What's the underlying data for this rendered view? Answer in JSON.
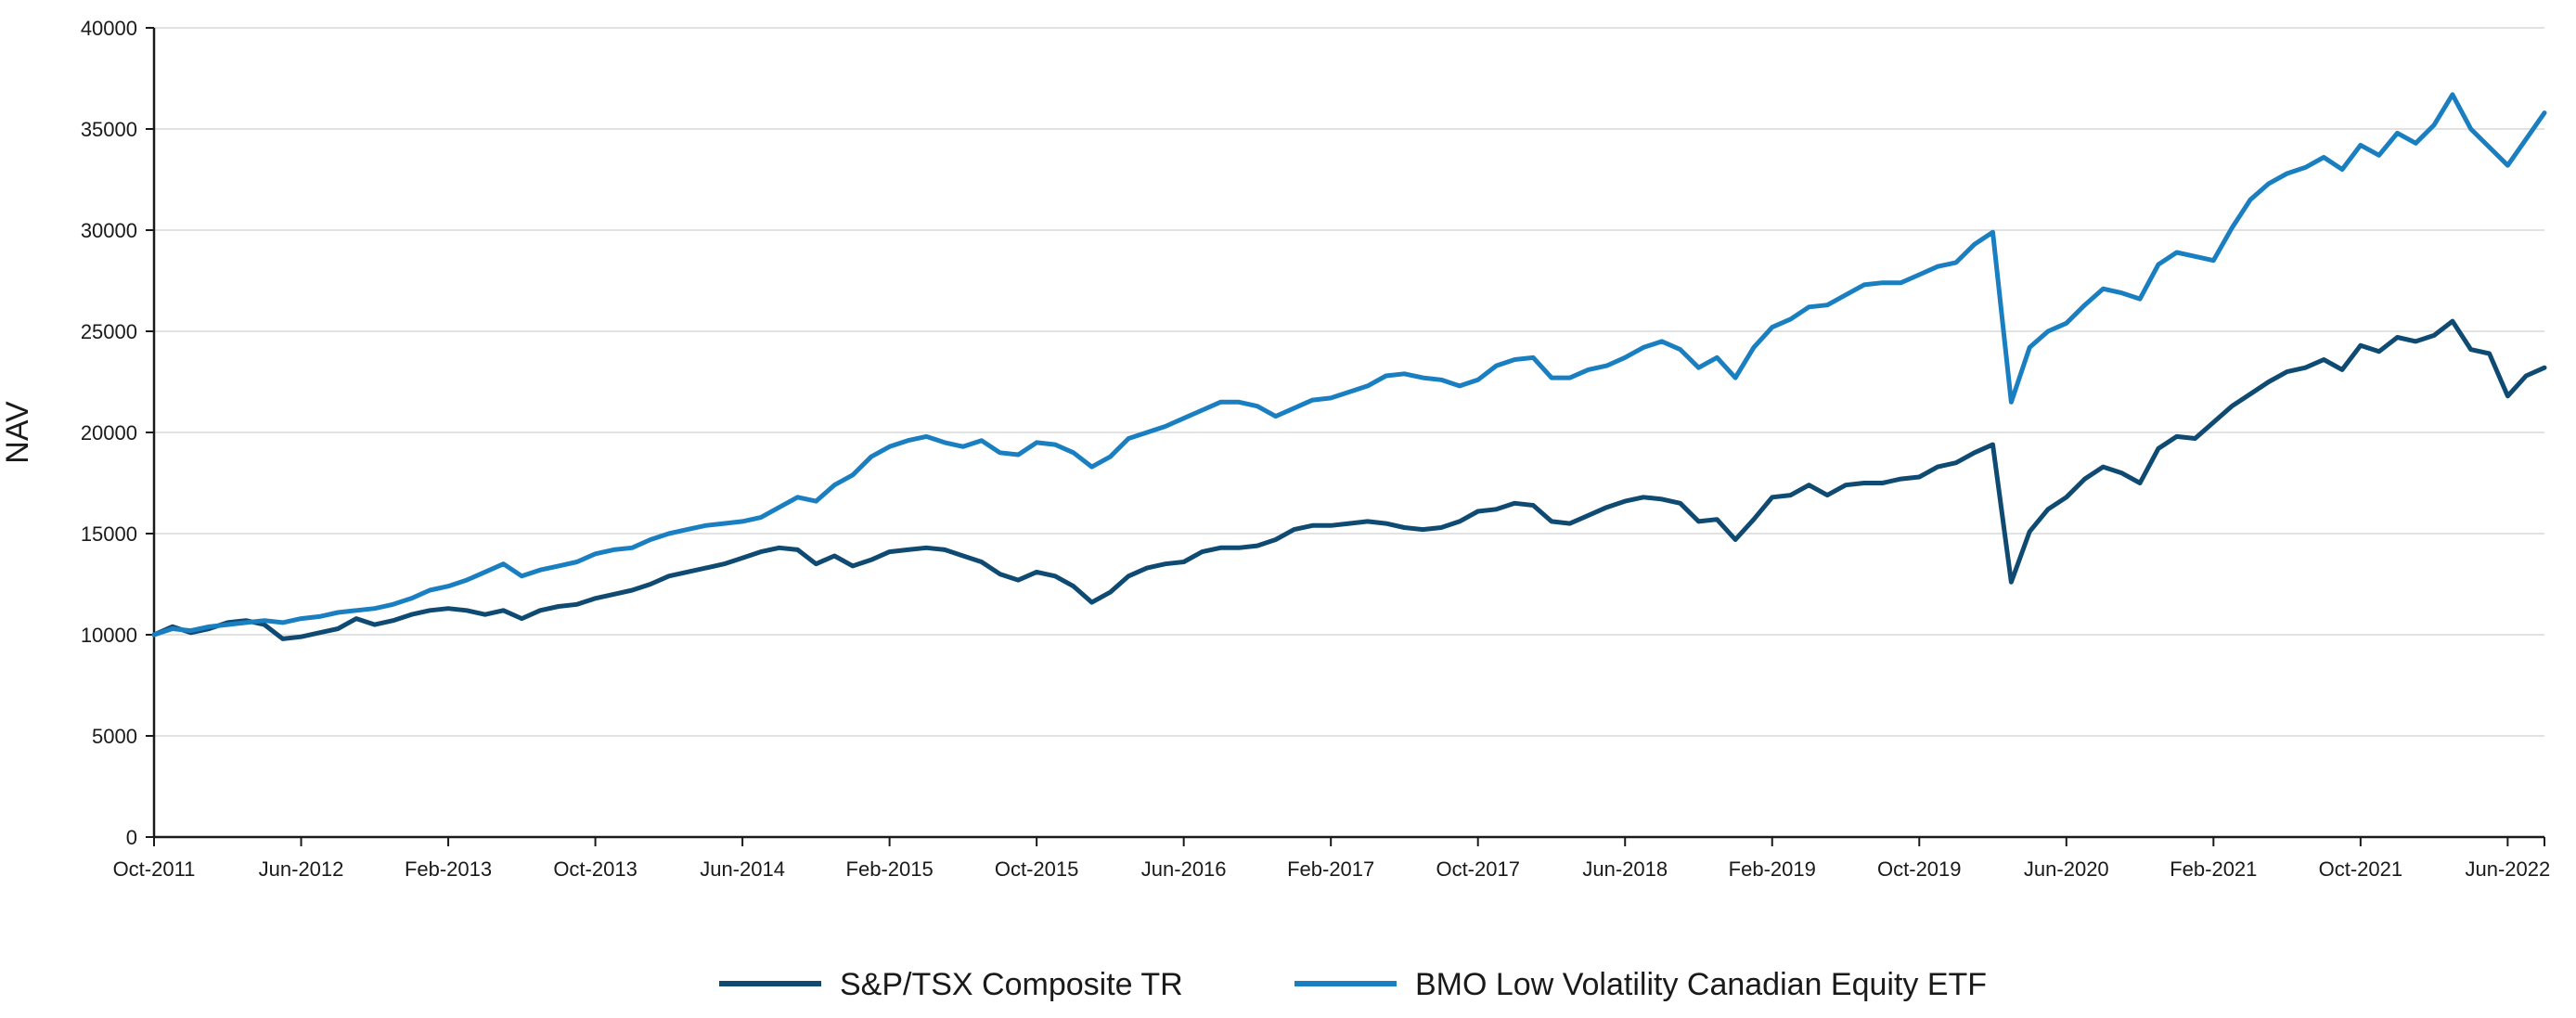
{
  "chart_data": {
    "type": "line",
    "title": "",
    "xlabel": "",
    "ylabel": "NAV",
    "ylim": [
      0,
      40000
    ],
    "yticks": [
      0,
      5000,
      10000,
      15000,
      20000,
      25000,
      30000,
      35000,
      40000
    ],
    "ytick_labels": [
      "0",
      "5000",
      "10000",
      "15000",
      "20000",
      "25000",
      "30000",
      "35000",
      "40000"
    ],
    "xlim": [
      "2011-10",
      "2022-08"
    ],
    "xticks": [
      "2011-10",
      "2012-06",
      "2013-02",
      "2013-10",
      "2014-06",
      "2015-02",
      "2015-10",
      "2016-06",
      "2017-02",
      "2017-10",
      "2018-06",
      "2019-02",
      "2019-10",
      "2020-06",
      "2021-02",
      "2021-10",
      "2022-06"
    ],
    "xtick_labels": [
      "Oct-2011",
      "Jun-2012",
      "Feb-2013",
      "Oct-2013",
      "Jun-2014",
      "Feb-2015",
      "Oct-2015",
      "Jun-2016",
      "Feb-2017",
      "Oct-2017",
      "Jun-2018",
      "Feb-2019",
      "Oct-2019",
      "Jun-2020",
      "Feb-2021",
      "Oct-2021",
      "Jun-2022"
    ],
    "grid": "horizontal",
    "legend_position": "bottom-center",
    "series": [
      {
        "name": "S&P/TSX Composite TR",
        "color": "#0f4a73",
        "points": [
          [
            "2011-10",
            10000
          ],
          [
            "2011-11",
            10400
          ],
          [
            "2011-12",
            10100
          ],
          [
            "2012-01",
            10300
          ],
          [
            "2012-02",
            10600
          ],
          [
            "2012-03",
            10700
          ],
          [
            "2012-04",
            10500
          ],
          [
            "2012-05",
            9800
          ],
          [
            "2012-06",
            9900
          ],
          [
            "2012-07",
            10100
          ],
          [
            "2012-08",
            10300
          ],
          [
            "2012-09",
            10800
          ],
          [
            "2012-10",
            10500
          ],
          [
            "2012-11",
            10700
          ],
          [
            "2012-12",
            11000
          ],
          [
            "2013-01",
            11200
          ],
          [
            "2013-02",
            11300
          ],
          [
            "2013-03",
            11200
          ],
          [
            "2013-04",
            11000
          ],
          [
            "2013-05",
            11200
          ],
          [
            "2013-06",
            10800
          ],
          [
            "2013-07",
            11200
          ],
          [
            "2013-08",
            11400
          ],
          [
            "2013-09",
            11500
          ],
          [
            "2013-10",
            11800
          ],
          [
            "2013-11",
            12000
          ],
          [
            "2013-12",
            12200
          ],
          [
            "2014-01",
            12500
          ],
          [
            "2014-02",
            12900
          ],
          [
            "2014-03",
            13100
          ],
          [
            "2014-04",
            13300
          ],
          [
            "2014-05",
            13500
          ],
          [
            "2014-06",
            13800
          ],
          [
            "2014-07",
            14100
          ],
          [
            "2014-08",
            14300
          ],
          [
            "2014-09",
            14200
          ],
          [
            "2014-10",
            13500
          ],
          [
            "2014-11",
            13900
          ],
          [
            "2014-12",
            13400
          ],
          [
            "2015-01",
            13700
          ],
          [
            "2015-02",
            14100
          ],
          [
            "2015-03",
            14200
          ],
          [
            "2015-04",
            14300
          ],
          [
            "2015-05",
            14200
          ],
          [
            "2015-06",
            13900
          ],
          [
            "2015-07",
            13600
          ],
          [
            "2015-08",
            13000
          ],
          [
            "2015-09",
            12700
          ],
          [
            "2015-10",
            13100
          ],
          [
            "2015-11",
            12900
          ],
          [
            "2015-12",
            12400
          ],
          [
            "2016-01",
            11600
          ],
          [
            "2016-02",
            12100
          ],
          [
            "2016-03",
            12900
          ],
          [
            "2016-04",
            13300
          ],
          [
            "2016-05",
            13500
          ],
          [
            "2016-06",
            13600
          ],
          [
            "2016-07",
            14100
          ],
          [
            "2016-08",
            14300
          ],
          [
            "2016-09",
            14300
          ],
          [
            "2016-10",
            14400
          ],
          [
            "2016-11",
            14700
          ],
          [
            "2016-12",
            15200
          ],
          [
            "2017-01",
            15400
          ],
          [
            "2017-02",
            15400
          ],
          [
            "2017-03",
            15500
          ],
          [
            "2017-04",
            15600
          ],
          [
            "2017-05",
            15500
          ],
          [
            "2017-06",
            15300
          ],
          [
            "2017-07",
            15200
          ],
          [
            "2017-08",
            15300
          ],
          [
            "2017-09",
            15600
          ],
          [
            "2017-10",
            16100
          ],
          [
            "2017-11",
            16200
          ],
          [
            "2017-12",
            16500
          ],
          [
            "2018-01",
            16400
          ],
          [
            "2018-02",
            15600
          ],
          [
            "2018-03",
            15500
          ],
          [
            "2018-04",
            15900
          ],
          [
            "2018-05",
            16300
          ],
          [
            "2018-06",
            16600
          ],
          [
            "2018-07",
            16800
          ],
          [
            "2018-08",
            16700
          ],
          [
            "2018-09",
            16500
          ],
          [
            "2018-10",
            15600
          ],
          [
            "2018-11",
            15700
          ],
          [
            "2018-12",
            14700
          ],
          [
            "2019-01",
            15700
          ],
          [
            "2019-02",
            16800
          ],
          [
            "2019-03",
            16900
          ],
          [
            "2019-04",
            17400
          ],
          [
            "2019-05",
            16900
          ],
          [
            "2019-06",
            17400
          ],
          [
            "2019-07",
            17500
          ],
          [
            "2019-08",
            17500
          ],
          [
            "2019-09",
            17700
          ],
          [
            "2019-10",
            17800
          ],
          [
            "2019-11",
            18300
          ],
          [
            "2019-12",
            18500
          ],
          [
            "2020-01",
            19000
          ],
          [
            "2020-02",
            19400
          ],
          [
            "2020-03",
            12600
          ],
          [
            "2020-04",
            15100
          ],
          [
            "2020-05",
            16200
          ],
          [
            "2020-06",
            16800
          ],
          [
            "2020-07",
            17700
          ],
          [
            "2020-08",
            18300
          ],
          [
            "2020-09",
            18000
          ],
          [
            "2020-10",
            17500
          ],
          [
            "2020-11",
            19200
          ],
          [
            "2020-12",
            19800
          ],
          [
            "2021-01",
            19700
          ],
          [
            "2021-02",
            20500
          ],
          [
            "2021-03",
            21300
          ],
          [
            "2021-04",
            21900
          ],
          [
            "2021-05",
            22500
          ],
          [
            "2021-06",
            23000
          ],
          [
            "2021-07",
            23200
          ],
          [
            "2021-08",
            23600
          ],
          [
            "2021-09",
            23100
          ],
          [
            "2021-10",
            24300
          ],
          [
            "2021-11",
            24000
          ],
          [
            "2021-12",
            24700
          ],
          [
            "2022-01",
            24500
          ],
          [
            "2022-02",
            24800
          ],
          [
            "2022-03",
            25500
          ],
          [
            "2022-04",
            24100
          ],
          [
            "2022-05",
            23900
          ],
          [
            "2022-06",
            21800
          ],
          [
            "2022-07",
            22800
          ],
          [
            "2022-08",
            23200
          ]
        ]
      },
      {
        "name": "BMO Low Volatility Canadian Equity ETF",
        "color": "#1a7fc1",
        "points": [
          [
            "2011-10",
            10000
          ],
          [
            "2011-11",
            10300
          ],
          [
            "2011-12",
            10200
          ],
          [
            "2012-01",
            10400
          ],
          [
            "2012-02",
            10500
          ],
          [
            "2012-03",
            10600
          ],
          [
            "2012-04",
            10700
          ],
          [
            "2012-05",
            10600
          ],
          [
            "2012-06",
            10800
          ],
          [
            "2012-07",
            10900
          ],
          [
            "2012-08",
            11100
          ],
          [
            "2012-09",
            11200
          ],
          [
            "2012-10",
            11300
          ],
          [
            "2012-11",
            11500
          ],
          [
            "2012-12",
            11800
          ],
          [
            "2013-01",
            12200
          ],
          [
            "2013-02",
            12400
          ],
          [
            "2013-03",
            12700
          ],
          [
            "2013-04",
            13100
          ],
          [
            "2013-05",
            13500
          ],
          [
            "2013-06",
            12900
          ],
          [
            "2013-07",
            13200
          ],
          [
            "2013-08",
            13400
          ],
          [
            "2013-09",
            13600
          ],
          [
            "2013-10",
            14000
          ],
          [
            "2013-11",
            14200
          ],
          [
            "2013-12",
            14300
          ],
          [
            "2014-01",
            14700
          ],
          [
            "2014-02",
            15000
          ],
          [
            "2014-03",
            15200
          ],
          [
            "2014-04",
            15400
          ],
          [
            "2014-05",
            15500
          ],
          [
            "2014-06",
            15600
          ],
          [
            "2014-07",
            15800
          ],
          [
            "2014-08",
            16300
          ],
          [
            "2014-09",
            16800
          ],
          [
            "2014-10",
            16600
          ],
          [
            "2014-11",
            17400
          ],
          [
            "2014-12",
            17900
          ],
          [
            "2015-01",
            18800
          ],
          [
            "2015-02",
            19300
          ],
          [
            "2015-03",
            19600
          ],
          [
            "2015-04",
            19800
          ],
          [
            "2015-05",
            19500
          ],
          [
            "2015-06",
            19300
          ],
          [
            "2015-07",
            19600
          ],
          [
            "2015-08",
            19000
          ],
          [
            "2015-09",
            18900
          ],
          [
            "2015-10",
            19500
          ],
          [
            "2015-11",
            19400
          ],
          [
            "2015-12",
            19000
          ],
          [
            "2016-01",
            18300
          ],
          [
            "2016-02",
            18800
          ],
          [
            "2016-03",
            19700
          ],
          [
            "2016-04",
            20000
          ],
          [
            "2016-05",
            20300
          ],
          [
            "2016-06",
            20700
          ],
          [
            "2016-07",
            21100
          ],
          [
            "2016-08",
            21500
          ],
          [
            "2016-09",
            21500
          ],
          [
            "2016-10",
            21300
          ],
          [
            "2016-11",
            20800
          ],
          [
            "2016-12",
            21200
          ],
          [
            "2017-01",
            21600
          ],
          [
            "2017-02",
            21700
          ],
          [
            "2017-03",
            22000
          ],
          [
            "2017-04",
            22300
          ],
          [
            "2017-05",
            22800
          ],
          [
            "2017-06",
            22900
          ],
          [
            "2017-07",
            22700
          ],
          [
            "2017-08",
            22600
          ],
          [
            "2017-09",
            22300
          ],
          [
            "2017-10",
            22600
          ],
          [
            "2017-11",
            23300
          ],
          [
            "2017-12",
            23600
          ],
          [
            "2018-01",
            23700
          ],
          [
            "2018-02",
            22700
          ],
          [
            "2018-03",
            22700
          ],
          [
            "2018-04",
            23100
          ],
          [
            "2018-05",
            23300
          ],
          [
            "2018-06",
            23700
          ],
          [
            "2018-07",
            24200
          ],
          [
            "2018-08",
            24500
          ],
          [
            "2018-09",
            24100
          ],
          [
            "2018-10",
            23200
          ],
          [
            "2018-11",
            23700
          ],
          [
            "2018-12",
            22700
          ],
          [
            "2019-01",
            24200
          ],
          [
            "2019-02",
            25200
          ],
          [
            "2019-03",
            25600
          ],
          [
            "2019-04",
            26200
          ],
          [
            "2019-05",
            26300
          ],
          [
            "2019-06",
            26800
          ],
          [
            "2019-07",
            27300
          ],
          [
            "2019-08",
            27400
          ],
          [
            "2019-09",
            27400
          ],
          [
            "2019-10",
            27800
          ],
          [
            "2019-11",
            28200
          ],
          [
            "2019-12",
            28400
          ],
          [
            "2020-01",
            29300
          ],
          [
            "2020-02",
            29900
          ],
          [
            "2020-03",
            21500
          ],
          [
            "2020-04",
            24200
          ],
          [
            "2020-05",
            25000
          ],
          [
            "2020-06",
            25400
          ],
          [
            "2020-07",
            26300
          ],
          [
            "2020-08",
            27100
          ],
          [
            "2020-09",
            26900
          ],
          [
            "2020-10",
            26600
          ],
          [
            "2020-11",
            28300
          ],
          [
            "2020-12",
            28900
          ],
          [
            "2021-01",
            28700
          ],
          [
            "2021-02",
            28500
          ],
          [
            "2021-03",
            30100
          ],
          [
            "2021-04",
            31500
          ],
          [
            "2021-05",
            32300
          ],
          [
            "2021-06",
            32800
          ],
          [
            "2021-07",
            33100
          ],
          [
            "2021-08",
            33600
          ],
          [
            "2021-09",
            33000
          ],
          [
            "2021-10",
            34200
          ],
          [
            "2021-11",
            33700
          ],
          [
            "2021-12",
            34800
          ],
          [
            "2022-01",
            34300
          ],
          [
            "2022-02",
            35200
          ],
          [
            "2022-03",
            36700
          ],
          [
            "2022-04",
            35000
          ],
          [
            "2022-05",
            34100
          ],
          [
            "2022-06",
            33200
          ],
          [
            "2022-07",
            34500
          ],
          [
            "2022-08",
            35800
          ]
        ]
      }
    ]
  }
}
